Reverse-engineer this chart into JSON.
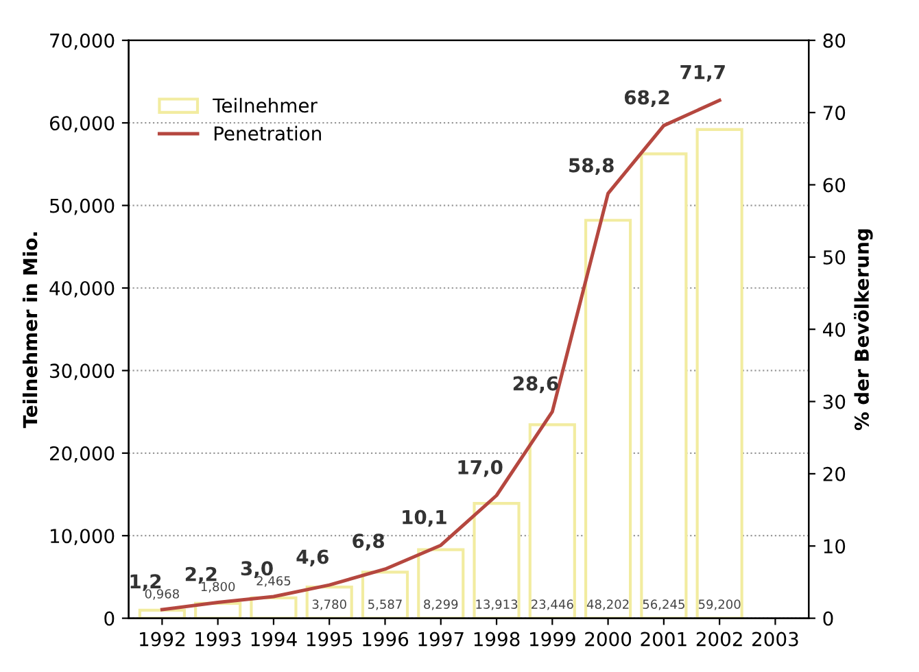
{
  "chart_data": {
    "type": "bar",
    "categories": [
      "1992",
      "1993",
      "1994",
      "1995",
      "1996",
      "1997",
      "1998",
      "1999",
      "2000",
      "2001",
      "2002",
      "2003"
    ],
    "ylabel": "Teilnehmer in Mio.",
    "y2label": "% der Bevölkerung",
    "ylim": [
      0,
      70
    ],
    "yticks": [
      {
        "value": 0,
        "label": "0"
      },
      {
        "value": 10,
        "label": "10,000"
      },
      {
        "value": 20,
        "label": "20,000"
      },
      {
        "value": 30,
        "label": "30,000"
      },
      {
        "value": 40,
        "label": "40,000"
      },
      {
        "value": 50,
        "label": "50,000"
      },
      {
        "value": 60,
        "label": "60,000"
      },
      {
        "value": 70,
        "label": "70,000"
      }
    ],
    "y2lim": [
      0,
      80
    ],
    "y2ticks": [
      0,
      10,
      20,
      30,
      40,
      50,
      60,
      70,
      80
    ],
    "grid": "y",
    "legend": "top left",
    "series": [
      {
        "name": "Teilnehmer",
        "color": "#f2eca0",
        "values": [
          0.968,
          1.8,
          2.465,
          3.78,
          5.587,
          8.299,
          13.913,
          23.446,
          48.202,
          56.245,
          59.2,
          null
        ],
        "value_labels": [
          "0,968",
          "1,800",
          "2,465",
          "3,780",
          "5,587",
          "8,299",
          "13,913",
          "23,446",
          "48,202",
          "56,245",
          "59,200",
          null
        ]
      },
      {
        "name": "Penetration",
        "type": "line",
        "axis": "y2",
        "color": "#b5473f",
        "values": [
          1.2,
          2.2,
          3.0,
          4.6,
          6.8,
          10.1,
          17.0,
          28.6,
          58.8,
          68.2,
          71.7,
          null
        ],
        "value_labels": [
          "1,2",
          "2,2",
          "3,0",
          "4,6",
          "6,8",
          "10,1",
          "17,0",
          "28,6",
          "58,8",
          "68,2",
          "71,7",
          null
        ]
      }
    ]
  }
}
